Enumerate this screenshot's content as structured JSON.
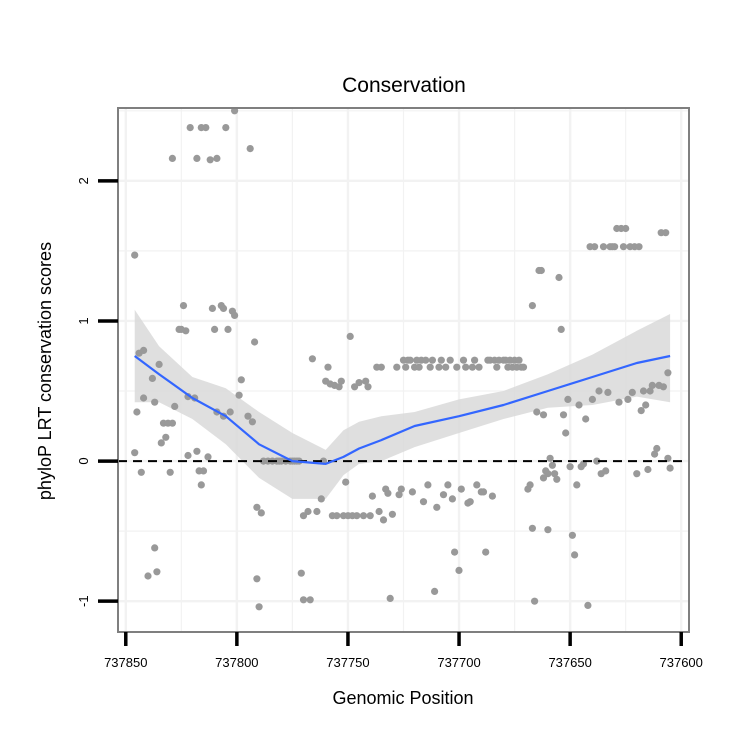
{
  "chart_data": {
    "type": "scatter",
    "title": "Conservation",
    "xlabel": "Genomic Position",
    "ylabel": "phyloP LRT conservation scores",
    "x_reversed": true,
    "xlim": [
      737853.5,
      737596.5
    ],
    "ylim": [
      -1.22,
      2.52
    ],
    "x_ticks": [
      737850,
      737800,
      737750,
      737700,
      737650,
      737600
    ],
    "x_tick_labels": [
      "737850",
      "737800",
      "737750",
      "737700",
      "737650",
      "737600"
    ],
    "y_ticks": [
      -1,
      0,
      1,
      2
    ],
    "y_tick_labels": [
      "-1",
      "0",
      "1",
      "2"
    ],
    "reference_line": {
      "y": 0,
      "style": "dashed"
    },
    "colors": {
      "points": "#999999",
      "smooth": "#3366ff",
      "ribbon": "#d9d9d9",
      "grid": "#f2f2f2",
      "frame": "#7f7f7f"
    },
    "smooth": {
      "x": [
        737846,
        737835,
        737820,
        737805,
        737790,
        737775,
        737760,
        737752,
        737745,
        737735,
        737720,
        737700,
        737680,
        737660,
        737640,
        737620,
        737605
      ],
      "y": [
        0.75,
        0.62,
        0.45,
        0.32,
        0.12,
        0.0,
        -0.02,
        0.03,
        0.09,
        0.15,
        0.25,
        0.32,
        0.4,
        0.5,
        0.6,
        0.7,
        0.75
      ],
      "ci_low": [
        0.42,
        0.42,
        0.3,
        0.12,
        -0.12,
        -0.27,
        -0.27,
        -0.1,
        -0.02,
        0.0,
        0.1,
        0.2,
        0.3,
        0.38,
        0.4,
        0.46,
        0.42
      ],
      "ci_high": [
        1.08,
        0.82,
        0.6,
        0.52,
        0.35,
        0.2,
        0.08,
        0.22,
        0.28,
        0.32,
        0.35,
        0.44,
        0.5,
        0.62,
        0.76,
        0.93,
        1.05
      ]
    },
    "series": [
      {
        "name": "phyloP",
        "points": [
          [
            737846,
            1.47
          ],
          [
            737846,
            0.06
          ],
          [
            737845,
            0.35
          ],
          [
            737844,
            0.77
          ],
          [
            737842,
            0.79
          ],
          [
            737843,
            -0.08
          ],
          [
            737842,
            0.45
          ],
          [
            737840,
            -0.82
          ],
          [
            737838,
            0.59
          ],
          [
            737837,
            0.42
          ],
          [
            737837,
            -0.62
          ],
          [
            737836,
            -0.79
          ],
          [
            737835,
            0.69
          ],
          [
            737834,
            0.13
          ],
          [
            737833,
            0.27
          ],
          [
            737832,
            0.17
          ],
          [
            737831,
            0.27
          ],
          [
            737830,
            -0.08
          ],
          [
            737829,
            2.16
          ],
          [
            737829,
            0.27
          ],
          [
            737828,
            0.39
          ],
          [
            737826,
            0.94
          ],
          [
            737825,
            0.94
          ],
          [
            737824,
            1.11
          ],
          [
            737823,
            0.93
          ],
          [
            737822,
            0.46
          ],
          [
            737822,
            0.04
          ],
          [
            737821,
            2.38
          ],
          [
            737819,
            0.45
          ],
          [
            737818,
            2.16
          ],
          [
            737818,
            0.07
          ],
          [
            737817,
            -0.07
          ],
          [
            737816,
            -0.17
          ],
          [
            737816,
            2.38
          ],
          [
            737815,
            -0.07
          ],
          [
            737814,
            2.38
          ],
          [
            737813,
            0.03
          ],
          [
            737812,
            2.15
          ],
          [
            737811,
            1.09
          ],
          [
            737810,
            0.94
          ],
          [
            737809,
            2.16
          ],
          [
            737809,
            0.35
          ],
          [
            737807,
            1.11
          ],
          [
            737806,
            0.32
          ],
          [
            737806,
            1.09
          ],
          [
            737805,
            2.38
          ],
          [
            737804,
            0.94
          ],
          [
            737803,
            0.35
          ],
          [
            737802,
            1.07
          ],
          [
            737801,
            1.04
          ],
          [
            737801,
            2.5
          ],
          [
            737799,
            0.47
          ],
          [
            737798,
            0.58
          ],
          [
            737795,
            0.32
          ],
          [
            737794,
            2.23
          ],
          [
            737793,
            0.28
          ],
          [
            737792,
            0.85
          ],
          [
            737791,
            -0.33
          ],
          [
            737791,
            -0.84
          ],
          [
            737790,
            -1.04
          ],
          [
            737789,
            -0.37
          ],
          [
            737788,
            0.0
          ],
          [
            737786,
            0.0
          ],
          [
            737784,
            0.0
          ],
          [
            737782,
            0.0
          ],
          [
            737781,
            0.0
          ],
          [
            737780,
            0.0
          ],
          [
            737778,
            0.0
          ],
          [
            737776,
            0.0
          ],
          [
            737775,
            0.0
          ],
          [
            737774,
            0.0
          ],
          [
            737773,
            0.0
          ],
          [
            737772,
            0.0
          ],
          [
            737771,
            -0.8
          ],
          [
            737770,
            -0.39
          ],
          [
            737770,
            -0.99
          ],
          [
            737768,
            -0.36
          ],
          [
            737767,
            -0.99
          ],
          [
            737766,
            0.73
          ],
          [
            737764,
            -0.36
          ],
          [
            737762,
            -0.27
          ],
          [
            737761,
            0.0
          ],
          [
            737760,
            0.57
          ],
          [
            737759,
            0.67
          ],
          [
            737758,
            0.55
          ],
          [
            737757,
            -0.39
          ],
          [
            737756,
            0.54
          ],
          [
            737755,
            -0.39
          ],
          [
            737754,
            0.53
          ],
          [
            737753,
            0.57
          ],
          [
            737752,
            -0.39
          ],
          [
            737751,
            -0.15
          ],
          [
            737750,
            -0.39
          ],
          [
            737749,
            0.89
          ],
          [
            737748,
            -0.39
          ],
          [
            737747,
            0.53
          ],
          [
            737746,
            -0.39
          ],
          [
            737745,
            0.56
          ],
          [
            737743,
            -0.39
          ],
          [
            737742,
            0.57
          ],
          [
            737741,
            0.53
          ],
          [
            737740,
            -0.39
          ],
          [
            737739,
            -0.25
          ],
          [
            737737,
            0.67
          ],
          [
            737736,
            -0.36
          ],
          [
            737735,
            0.67
          ],
          [
            737734,
            -0.42
          ],
          [
            737733,
            -0.2
          ],
          [
            737732,
            -0.23
          ],
          [
            737731,
            -0.98
          ],
          [
            737730,
            -0.38
          ],
          [
            737728,
            0.67
          ],
          [
            737727,
            -0.24
          ],
          [
            737726,
            -0.2
          ],
          [
            737725,
            0.72
          ],
          [
            737724,
            0.67
          ],
          [
            737723,
            0.72
          ],
          [
            737722,
            0.72
          ],
          [
            737721,
            -0.22
          ],
          [
            737720,
            0.67
          ],
          [
            737719,
            0.72
          ],
          [
            737718,
            0.67
          ],
          [
            737717,
            0.72
          ],
          [
            737716,
            -0.29
          ],
          [
            737715,
            0.72
          ],
          [
            737714,
            -0.17
          ],
          [
            737713,
            0.67
          ],
          [
            737712,
            0.72
          ],
          [
            737711,
            -0.93
          ],
          [
            737710,
            -0.33
          ],
          [
            737709,
            0.67
          ],
          [
            737708,
            0.72
          ],
          [
            737707,
            -0.24
          ],
          [
            737706,
            0.67
          ],
          [
            737705,
            -0.17
          ],
          [
            737704,
            0.72
          ],
          [
            737703,
            -0.27
          ],
          [
            737702,
            -0.65
          ],
          [
            737701,
            0.67
          ],
          [
            737700,
            -0.78
          ],
          [
            737699,
            -0.2
          ],
          [
            737698,
            0.72
          ],
          [
            737697,
            0.67
          ],
          [
            737696,
            -0.3
          ],
          [
            737695,
            -0.29
          ],
          [
            737694,
            0.67
          ],
          [
            737693,
            0.72
          ],
          [
            737692,
            -0.17
          ],
          [
            737691,
            0.67
          ],
          [
            737690,
            -0.22
          ],
          [
            737689,
            -0.22
          ],
          [
            737688,
            -0.65
          ],
          [
            737687,
            0.72
          ],
          [
            737686,
            0.72
          ],
          [
            737685,
            -0.25
          ],
          [
            737684,
            0.72
          ],
          [
            737683,
            0.67
          ],
          [
            737682,
            0.72
          ],
          [
            737680,
            0.72
          ],
          [
            737679,
            0.72
          ],
          [
            737678,
            0.67
          ],
          [
            737677,
            0.72
          ],
          [
            737676,
            0.67
          ],
          [
            737675,
            0.72
          ],
          [
            737674,
            0.67
          ],
          [
            737673,
            0.72
          ],
          [
            737672,
            0.67
          ],
          [
            737671,
            0.67
          ],
          [
            737669,
            -0.2
          ],
          [
            737668,
            -0.17
          ],
          [
            737667,
            1.11
          ],
          [
            737667,
            -0.48
          ],
          [
            737666,
            -1.0
          ],
          [
            737665,
            0.35
          ],
          [
            737664,
            1.36
          ],
          [
            737663,
            1.36
          ],
          [
            737662,
            0.33
          ],
          [
            737662,
            -0.12
          ],
          [
            737661,
            -0.07
          ],
          [
            737660,
            -0.49
          ],
          [
            737660,
            -0.09
          ],
          [
            737659,
            0.02
          ],
          [
            737658,
            -0.03
          ],
          [
            737657,
            -0.09
          ],
          [
            737656,
            -0.13
          ],
          [
            737655,
            1.31
          ],
          [
            737654,
            0.94
          ],
          [
            737653,
            0.33
          ],
          [
            737652,
            0.2
          ],
          [
            737651,
            0.44
          ],
          [
            737650,
            -0.04
          ],
          [
            737649,
            -0.53
          ],
          [
            737648,
            -0.67
          ],
          [
            737647,
            -0.17
          ],
          [
            737646,
            0.4
          ],
          [
            737645,
            -0.04
          ],
          [
            737644,
            -0.02
          ],
          [
            737643,
            0.3
          ],
          [
            737642,
            -1.03
          ],
          [
            737641,
            1.53
          ],
          [
            737640,
            0.44
          ],
          [
            737639,
            1.53
          ],
          [
            737638,
            0.0
          ],
          [
            737637,
            0.5
          ],
          [
            737636,
            -0.09
          ],
          [
            737635,
            1.53
          ],
          [
            737634,
            -0.07
          ],
          [
            737633,
            0.49
          ],
          [
            737632,
            1.53
          ],
          [
            737631,
            1.53
          ],
          [
            737630,
            1.53
          ],
          [
            737629,
            1.66
          ],
          [
            737628,
            0.42
          ],
          [
            737627,
            1.66
          ],
          [
            737626,
            1.53
          ],
          [
            737625,
            1.66
          ],
          [
            737624,
            0.44
          ],
          [
            737623,
            1.53
          ],
          [
            737622,
            0.49
          ],
          [
            737621,
            1.53
          ],
          [
            737620,
            -0.09
          ],
          [
            737619,
            1.53
          ],
          [
            737618,
            0.36
          ],
          [
            737617,
            0.5
          ],
          [
            737616,
            0.4
          ],
          [
            737615,
            -0.06
          ],
          [
            737614,
            0.5
          ],
          [
            737613,
            0.54
          ],
          [
            737612,
            0.05
          ],
          [
            737611,
            0.09
          ],
          [
            737610,
            0.54
          ],
          [
            737609,
            1.63
          ],
          [
            737608,
            0.53
          ],
          [
            737607,
            1.63
          ],
          [
            737606,
            0.63
          ],
          [
            737606,
            0.02
          ],
          [
            737605,
            -0.05
          ]
        ]
      }
    ]
  }
}
